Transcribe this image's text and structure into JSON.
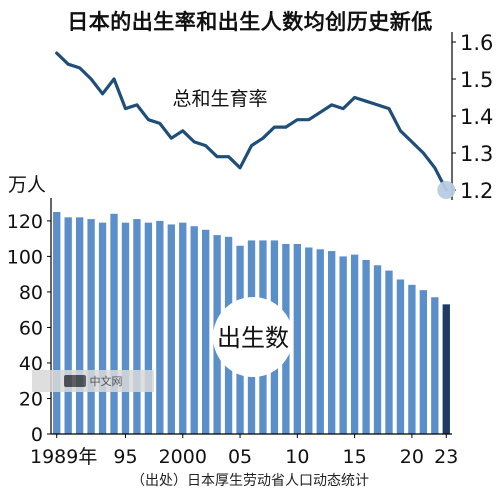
{
  "title": "日本的出生率和出生人数均创历史新低",
  "source": "（出处）日本厚生劳动省人口动态统计",
  "watermark": {
    "text": "中文网"
  },
  "colors": {
    "bar": "#5b8fc9",
    "bar_last": "#1f3b63",
    "line": "#1f4e79",
    "marker": "#b8cbe2",
    "axis": "#000000"
  },
  "chart_data": [
    {
      "type": "line",
      "label": "总和生育率",
      "x": [
        1989,
        1990,
        1991,
        1992,
        1993,
        1994,
        1995,
        1996,
        1997,
        1998,
        1999,
        2000,
        2001,
        2002,
        2003,
        2004,
        2005,
        2006,
        2007,
        2008,
        2009,
        2010,
        2011,
        2012,
        2013,
        2014,
        2015,
        2016,
        2017,
        2018,
        2019,
        2020,
        2021,
        2022,
        2023
      ],
      "y": [
        1.57,
        1.54,
        1.53,
        1.5,
        1.46,
        1.5,
        1.42,
        1.43,
        1.39,
        1.38,
        1.34,
        1.36,
        1.33,
        1.32,
        1.29,
        1.29,
        1.26,
        1.32,
        1.34,
        1.37,
        1.37,
        1.39,
        1.39,
        1.41,
        1.43,
        1.42,
        1.45,
        1.44,
        1.43,
        1.42,
        1.36,
        1.33,
        1.3,
        1.26,
        1.2
      ],
      "ylim": [
        1.2,
        1.6
      ],
      "yticks": [
        "1.6",
        "1.5",
        "1.4",
        "1.3",
        "1.2"
      ]
    },
    {
      "type": "bar",
      "label": "出生数",
      "unit": "万人",
      "x": [
        1989,
        1990,
        1991,
        1992,
        1993,
        1994,
        1995,
        1996,
        1997,
        1998,
        1999,
        2000,
        2001,
        2002,
        2003,
        2004,
        2005,
        2006,
        2007,
        2008,
        2009,
        2010,
        2011,
        2012,
        2013,
        2014,
        2015,
        2016,
        2017,
        2018,
        2019,
        2020,
        2021,
        2022,
        2023
      ],
      "values": [
        125,
        122,
        122,
        121,
        119,
        124,
        119,
        121,
        119,
        120,
        118,
        119,
        117,
        115,
        112,
        111,
        106,
        109,
        109,
        109,
        107,
        107,
        105,
        104,
        103,
        100,
        101,
        98,
        95,
        92,
        87,
        84,
        81,
        77,
        73
      ],
      "ylim": [
        0,
        130
      ],
      "yticks": [
        "0",
        "20",
        "40",
        "60",
        "80",
        "100",
        "120"
      ],
      "xtick_labels": [
        {
          "year": 1989,
          "label": "1989年"
        },
        {
          "year": 1995,
          "label": "95"
        },
        {
          "year": 2000,
          "label": "2000"
        },
        {
          "year": 2005,
          "label": "05"
        },
        {
          "year": 2010,
          "label": "10"
        },
        {
          "year": 2015,
          "label": "15"
        },
        {
          "year": 2020,
          "label": "20"
        },
        {
          "year": 2023,
          "label": "23"
        }
      ]
    }
  ]
}
